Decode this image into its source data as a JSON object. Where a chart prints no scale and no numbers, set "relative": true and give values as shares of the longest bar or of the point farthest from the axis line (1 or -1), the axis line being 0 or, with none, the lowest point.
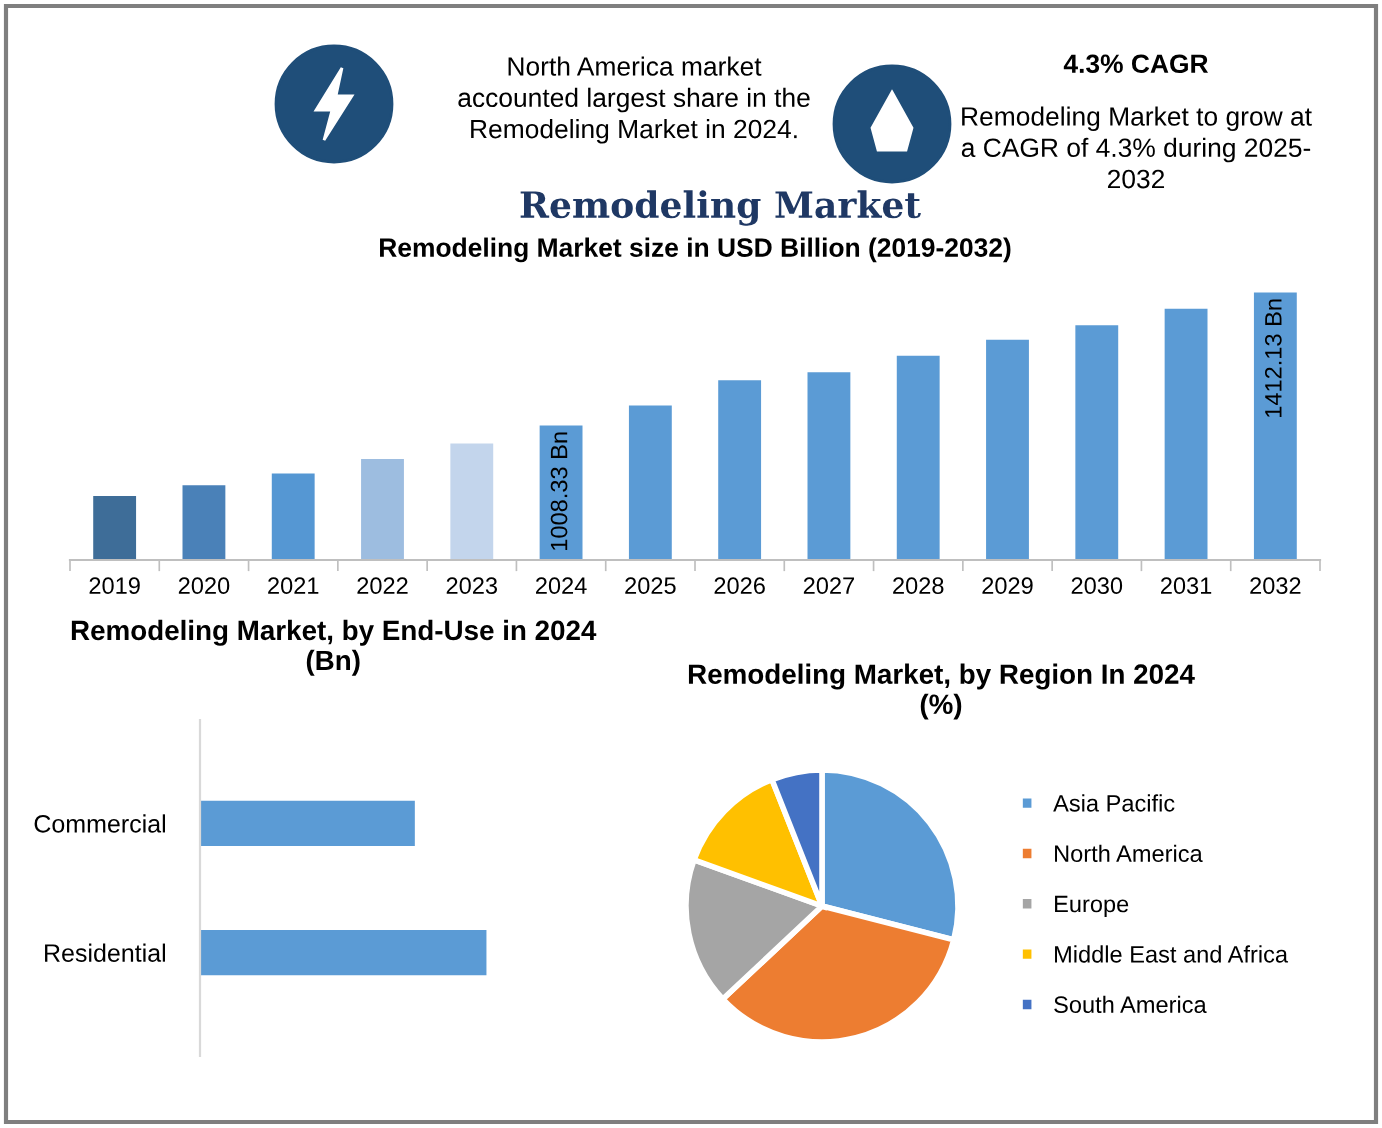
{
  "chart_data": [
    {
      "type": "other",
      "title": "Remodeling Market",
      "annotations": [
        "North America market\naccounted largest share in the\nRemodeling Market in 2024.",
        "4.3% CAGR",
        "Remodeling Market to grow at\na CAGR of 4.3% during 2025-\n2032"
      ]
    },
    {
      "type": "bar",
      "title": "Remodeling Market size in USD Billion (2019-2032)",
      "ylim": [
        600,
        1420
      ],
      "categories": [
        "2019",
        "2020",
        "2021",
        "2022",
        "2023",
        "2024",
        "2025",
        "2026",
        "2027",
        "2028",
        "2029",
        "2030",
        "2031",
        "2032"
      ],
      "values": [
        794,
        827,
        863,
        907,
        954,
        1008.33,
        1069,
        1146,
        1170,
        1220,
        1269,
        1313,
        1363,
        1412.13
      ],
      "colors": [
        "#3e6d98",
        "#4a81b8",
        "#5597d3",
        "#9dbde0",
        "#c3d5ec",
        "#5b9bd5",
        "#5b9bd5",
        "#5b9bd5",
        "#5b9bd5",
        "#5b9bd5",
        "#5b9bd5",
        "#5b9bd5",
        "#5b9bd5",
        "#5b9bd5"
      ],
      "value_labels": [
        null,
        null,
        null,
        null,
        null,
        "1008.33 Bn",
        null,
        null,
        null,
        null,
        null,
        null,
        null,
        "1412.13 Bn"
      ]
    },
    {
      "type": "bar",
      "orientation": "horizontal",
      "title": "Remodeling Market, by End-Use in 2024\n(Bn)",
      "relative": true,
      "categories": [
        "Commercial",
        "Residential"
      ],
      "values": [
        0.75,
        1
      ],
      "color": "#5b9bd5"
    },
    {
      "type": "pie",
      "title": "Remodeling Market, by Region In 2024\n(%)",
      "legend": "right",
      "categories": [
        "Asia Pacific",
        "North America",
        "Europe",
        "Middle East and Africa",
        "South America"
      ],
      "values": [
        29,
        34,
        17.5,
        13.5,
        6
      ],
      "colors": [
        "#5b9bd5",
        "#ed7d31",
        "#a5a5a5",
        "#ffc000",
        "#4472c4"
      ]
    }
  ]
}
